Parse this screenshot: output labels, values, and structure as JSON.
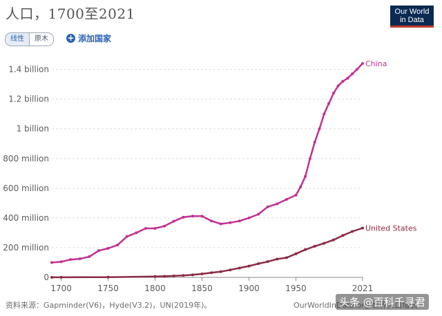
{
  "header": {
    "title": "人口，1700至2021",
    "logo_line1": "Our World",
    "logo_line2": "in Data"
  },
  "controls": {
    "linear_label": "线性",
    "log_label": "原木",
    "add_country_label": "添加国家"
  },
  "footer": {
    "source": "资料来源：Gapminder(V6)，Hyde(V3.2)，UN(2019年)。",
    "site": "OurWorldInData.org/世界人口增长",
    "watermark": "头条 @百科千寻君"
  },
  "chart_data": {
    "type": "line",
    "title": "人口，1700至2021",
    "xlim": [
      1690,
      2021
    ],
    "ylim": [
      0,
      1440000000
    ],
    "y_ticks": [
      0,
      200000000,
      400000000,
      600000000,
      800000000,
      1000000000,
      1200000000,
      1400000000
    ],
    "y_tick_labels": [
      "0",
      "200 million",
      "400 million",
      "600 million",
      "800 million",
      "1 billion",
      "1.2 billion",
      "1.4 billion"
    ],
    "x_ticks": [
      1700,
      1750,
      1800,
      1850,
      1900,
      1950,
      2021
    ],
    "x_tick_labels": [
      "1700",
      "1750",
      "1800",
      "1850",
      "1900",
      "1950",
      "2021"
    ],
    "grid": "horizontal dashed",
    "series": [
      {
        "name": "China",
        "color": "#c2318f",
        "x": [
          1690,
          1700,
          1710,
          1720,
          1730,
          1740,
          1750,
          1760,
          1770,
          1780,
          1790,
          1800,
          1810,
          1820,
          1830,
          1840,
          1850,
          1860,
          1870,
          1880,
          1890,
          1900,
          1910,
          1920,
          1930,
          1940,
          1950,
          1955,
          1960,
          1965,
          1970,
          1975,
          1980,
          1985,
          1990,
          1995,
          2000,
          2005,
          2010,
          2015,
          2021
        ],
        "y": [
          100000000,
          105000000,
          120000000,
          125000000,
          140000000,
          180000000,
          195000000,
          218000000,
          275000000,
          300000000,
          330000000,
          330000000,
          345000000,
          378000000,
          405000000,
          412000000,
          412000000,
          380000000,
          360000000,
          368000000,
          380000000,
          400000000,
          425000000,
          475000000,
          495000000,
          525000000,
          554000000,
          610000000,
          680000000,
          800000000,
          910000000,
          1000000000,
          1100000000,
          1170000000,
          1240000000,
          1290000000,
          1320000000,
          1340000000,
          1370000000,
          1400000000,
          1440000000
        ]
      },
      {
        "name": "United States",
        "color": "#8b2a45",
        "x": [
          1690,
          1700,
          1750,
          1800,
          1810,
          1820,
          1830,
          1840,
          1850,
          1860,
          1870,
          1880,
          1890,
          1900,
          1910,
          1920,
          1930,
          1940,
          1950,
          1960,
          1970,
          1980,
          1990,
          2000,
          2010,
          2021
        ],
        "y": [
          250000,
          500000,
          1500000,
          6000000,
          7200000,
          9600000,
          12900000,
          17100000,
          23200000,
          31400000,
          38600000,
          50200000,
          63000000,
          76200000,
          92200000,
          106000000,
          123200000,
          132200000,
          158800000,
          186700000,
          209500000,
          229500000,
          252100000,
          282000000,
          309000000,
          332000000
        ]
      }
    ]
  }
}
